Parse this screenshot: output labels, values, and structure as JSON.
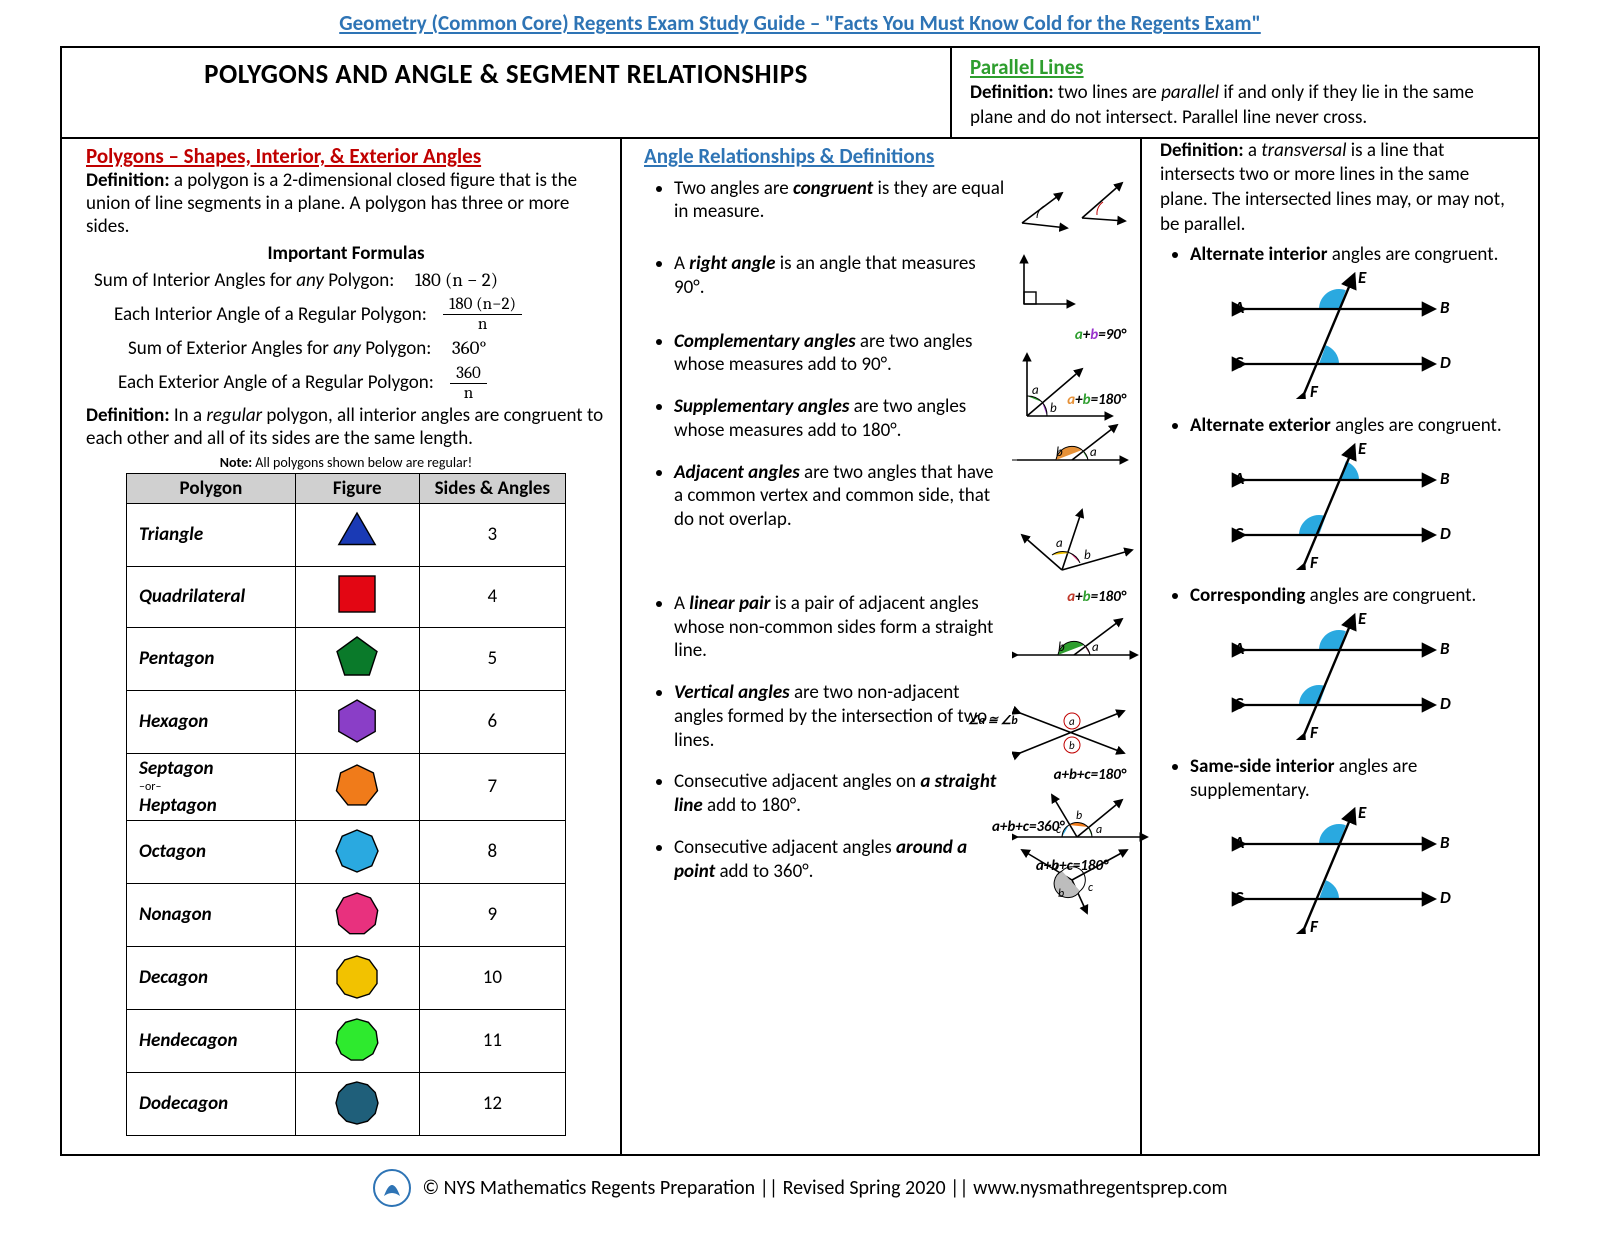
{
  "header_link": "Geometry (Common Core) Regents Exam Study Guide – \"Facts You Must Know Cold for the Regents Exam\"",
  "main_title": "POLYGONS AND ANGLE & SEGMENT RELATIONSHIPS",
  "col1": {
    "heading": "Polygons – Shapes, Interior, & Exterior Angles",
    "def": "a polygon is a 2-dimensional closed figure that is the union of line segments in a plane. A polygon has three or more sides.",
    "formulas_title": "Important Formulas",
    "f1_label": "Sum of Interior Angles for ",
    "f1_any": "any",
    "f1_label2": " Polygon:",
    "f1_val": "180 (n − 2)",
    "f2_label": "Each Interior Angle of a Regular Polygon:",
    "f2_num": "180 (n−2)",
    "f2_den": "n",
    "f3_label": "Sum of Exterior Angles for ",
    "f3_any": "any",
    "f3_label2": " Polygon:",
    "f3_val": "360°",
    "f4_label": "Each Exterior Angle of a Regular Polygon:",
    "f4_num": "360",
    "f4_den": "n",
    "def2": "In a ",
    "regular": "regular",
    "def2b": " polygon, all interior angles are congruent to each other and all of its sides are the same length.",
    "note": "Note: All polygons shown below are regular!",
    "table": {
      "headers": [
        "Polygon",
        "Figure",
        "Sides & Angles"
      ],
      "rows": [
        {
          "name": "Triangle",
          "sides": "3",
          "shape": "triangle",
          "color": "#1a3ab5"
        },
        {
          "name": "Quadrilateral",
          "sides": "4",
          "shape": "square",
          "color": "#e30613"
        },
        {
          "name": "Pentagon",
          "sides": "5",
          "shape": "pentagon",
          "color": "#0a7a2a"
        },
        {
          "name": "Hexagon",
          "sides": "6",
          "shape": "hexagon",
          "color": "#8a3ec7"
        },
        {
          "name": "Septagon",
          "sub": "–or– Heptagon",
          "sides": "7",
          "shape": "heptagon",
          "color": "#f07b1a"
        },
        {
          "name": "Octagon",
          "sides": "8",
          "shape": "octagon",
          "color": "#2aa9e0"
        },
        {
          "name": "Nonagon",
          "sides": "9",
          "shape": "nonagon",
          "color": "#e8317e"
        },
        {
          "name": "Decagon",
          "sides": "10",
          "shape": "decagon",
          "color": "#f2c200"
        },
        {
          "name": "Hendecagon",
          "sides": "11",
          "shape": "hendecagon",
          "color": "#2eea2e"
        },
        {
          "name": "Dodecagon",
          "sides": "12",
          "shape": "dodecagon",
          "color": "#1f5f7a"
        }
      ]
    }
  },
  "col2": {
    "heading": "Angle Relationships & Definitions",
    "items": [
      {
        "pre": "Two angles are ",
        "term": "congruent",
        "post": " is they are equal in measure."
      },
      {
        "pre": "A ",
        "term": "right angle",
        "post": " is an angle that measures 90°."
      },
      {
        "term": "Complementary angles",
        "post": " are two angles whose measures add to 90°.",
        "eq": "a+b=90°",
        "eqcols": [
          "#2e9e2e",
          "#9933cc",
          "#000"
        ]
      },
      {
        "term": "Supplementary angles",
        "post": " are two angles whose measures add to 180°.",
        "eq": "a+b=180°",
        "eqcols": [
          "#e69138",
          "#2e9e2e",
          "#000"
        ]
      },
      {
        "term": "Adjacent angles",
        "post": " are two angles that have a common vertex and common side, that do not overlap."
      },
      {
        "pre": "A ",
        "term": "linear pair",
        "post": " is a pair of adjacent angles whose non-common sides form a straight line.",
        "eq": "a+b=180°",
        "eqcols": [
          "#c0392b",
          "#2e9e2e",
          "#000"
        ]
      },
      {
        "term": "Vertical angles",
        "post": " are two non-adjacent angles formed by the intersection of two lines.",
        "eq2": "∠a ≅ ∠b"
      },
      {
        "pre": "Consecutive adjacent angles on ",
        "term": "a straight line",
        "post": " add to 180°.",
        "eq": "a+b+c=180°"
      },
      {
        "pre": "Consecutive adjacent angles ",
        "term": "around a point",
        "post": " add to 360°.",
        "eq": "a+b+c=360°"
      }
    ]
  },
  "col3": {
    "heading": "Parallel Lines",
    "def1": "two lines are ",
    "parallel": "parallel",
    "def1b": " if and only if they lie in the same plane and do not intersect. Parallel line never cross.",
    "def2": "a ",
    "transversal": "transversal",
    "def2b": " is a line that intersects two or more lines in the same plane. The intersected lines may, or may not, be parallel.",
    "items": [
      {
        "term": "Alternate interior",
        "post": " angles are congruent.",
        "arcs": "alt-int"
      },
      {
        "term": "Alternate exterior",
        "post": " angles are congruent.",
        "arcs": "alt-ext"
      },
      {
        "term": "Corresponding",
        "post": " angles are congruent.",
        "arcs": "corr"
      },
      {
        "term": "Same-side interior",
        "post": " angles are supplementary.",
        "arcs": "ssi"
      }
    ],
    "labels": {
      "A": "A",
      "B": "B",
      "C": "C",
      "D": "D",
      "E": "E",
      "F": "F"
    },
    "arc_color": "#2aa9e0"
  },
  "footer": "© NYS Mathematics Regents Preparation || Revised Spring 2020 || www.nysmathregentsprep.com"
}
